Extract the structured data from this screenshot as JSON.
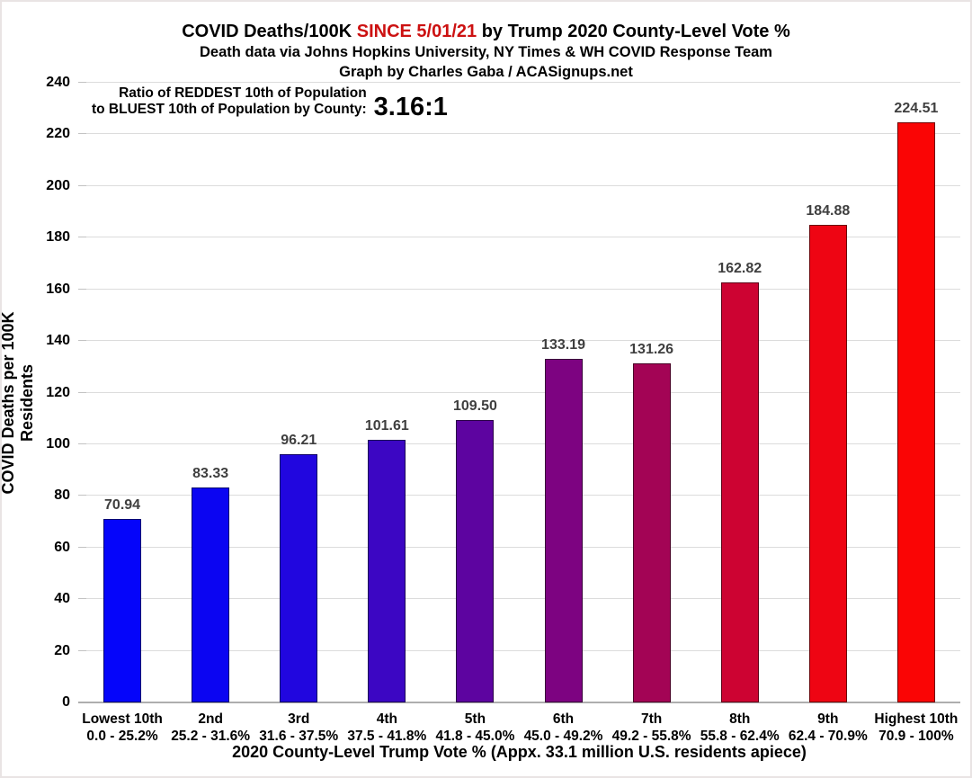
{
  "header": {
    "title_prefix": "COVID Deaths/100K ",
    "title_highlight": "SINCE 5/01/21",
    "title_suffix": " by Trump 2020 County-Level Vote %",
    "highlight_color": "#cc1111",
    "subtitle": "Death data via Johns Hopkins University, NY Times & WH COVID Response Team",
    "byline": "Graph by Charles Gaba / ACASignups.net"
  },
  "annotation": {
    "line1": "Ratio of REDDEST 10th of Population",
    "line2": "to BLUEST 10th of Population by County:",
    "ratio": "3.16:1"
  },
  "chart_data": {
    "type": "bar",
    "title": "COVID Deaths/100K SINCE 5/01/21 by Trump 2020 County-Level Vote %",
    "xlabel": "2020 County-Level Trump Vote % (Appx. 33.1 million U.S. residents apiece)",
    "ylabel": "COVID Deaths per 100K Residents",
    "ylim": [
      0,
      240
    ],
    "ytick_step": 20,
    "grid": true,
    "legend": "none",
    "categories": [
      "Lowest 10th",
      "2nd",
      "3rd",
      "4th",
      "5th",
      "6th",
      "7th",
      "8th",
      "9th",
      "Highest 10th"
    ],
    "category_ranges": [
      "0.0 - 25.2%",
      "25.2 - 31.6%",
      "31.6 - 37.5%",
      "37.5 - 41.8%",
      "41.8 - 45.0%",
      "45.0 - 49.2%",
      "49.2 - 55.8%",
      "55.8 - 62.4%",
      "62.4 - 70.9%",
      "70.9 - 100%"
    ],
    "values": [
      70.94,
      83.33,
      96.21,
      101.61,
      109.5,
      133.19,
      131.26,
      162.82,
      184.88,
      224.51
    ],
    "bar_colors": [
      "#0505fa",
      "#0b05f2",
      "#2106df",
      "#3c06c3",
      "#5d04a0",
      "#7d0381",
      "#a30455",
      "#cd0332",
      "#ee0513",
      "#fa0505"
    ],
    "value_label_color": "#3f3f3f",
    "gridline_color": "#dcdcdc"
  }
}
